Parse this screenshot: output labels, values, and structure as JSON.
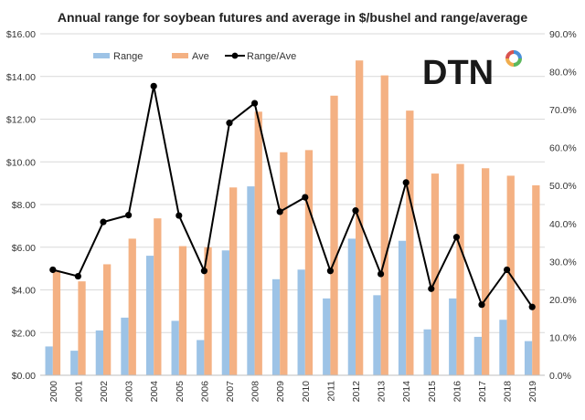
{
  "chart_data": {
    "type": "bar",
    "title": "Annual range for soybean futures and average in $/bushel and range/average",
    "categories": [
      "2000",
      "2001",
      "2002",
      "2003",
      "2004",
      "2005",
      "2006",
      "2007",
      "2008",
      "2009",
      "2010",
      "2011",
      "2012",
      "2013",
      "2014",
      "2015",
      "2016",
      "2017",
      "2018",
      "2019"
    ],
    "series": [
      {
        "name": "Range",
        "type": "bar",
        "axis": "left",
        "color": "#9dc3e6",
        "values": [
          1.35,
          1.15,
          2.1,
          2.7,
          5.6,
          2.55,
          1.65,
          5.85,
          8.85,
          4.5,
          4.95,
          3.6,
          6.4,
          3.75,
          6.3,
          2.15,
          3.6,
          1.8,
          2.6,
          1.6
        ]
      },
      {
        "name": "Ave",
        "type": "bar",
        "axis": "left",
        "color": "#f4b183",
        "values": [
          4.85,
          4.4,
          5.2,
          6.4,
          7.35,
          6.05,
          6.0,
          8.8,
          12.35,
          10.45,
          10.55,
          13.1,
          14.75,
          14.05,
          12.4,
          9.45,
          9.9,
          9.7,
          9.35,
          8.9
        ]
      },
      {
        "name": "Range/Ave",
        "type": "line",
        "axis": "right",
        "color": "#000000",
        "values": [
          27.8,
          26.1,
          40.4,
          42.2,
          76.2,
          42.1,
          27.5,
          66.5,
          71.7,
          43.1,
          46.9,
          27.5,
          43.4,
          26.7,
          50.8,
          22.8,
          36.4,
          18.6,
          27.8,
          18.0
        ]
      }
    ],
    "y_left": {
      "min": 0,
      "max": 16,
      "step": 2,
      "tick_labels": [
        "$0.00",
        "$2.00",
        "$4.00",
        "$6.00",
        "$8.00",
        "$10.00",
        "$12.00",
        "$14.00",
        "$16.00"
      ]
    },
    "y_right": {
      "min": 0,
      "max": 90,
      "step": 10,
      "tick_labels": [
        "0.0%",
        "10.0%",
        "20.0%",
        "30.0%",
        "40.0%",
        "50.0%",
        "60.0%",
        "70.0%",
        "80.0%",
        "90.0%"
      ]
    },
    "grid": true,
    "legend_position": "top-left"
  },
  "logo": {
    "text": "DTN",
    "colors": [
      "#4a90d9",
      "#5cb85c",
      "#f0ad4e",
      "#d9534f"
    ]
  }
}
